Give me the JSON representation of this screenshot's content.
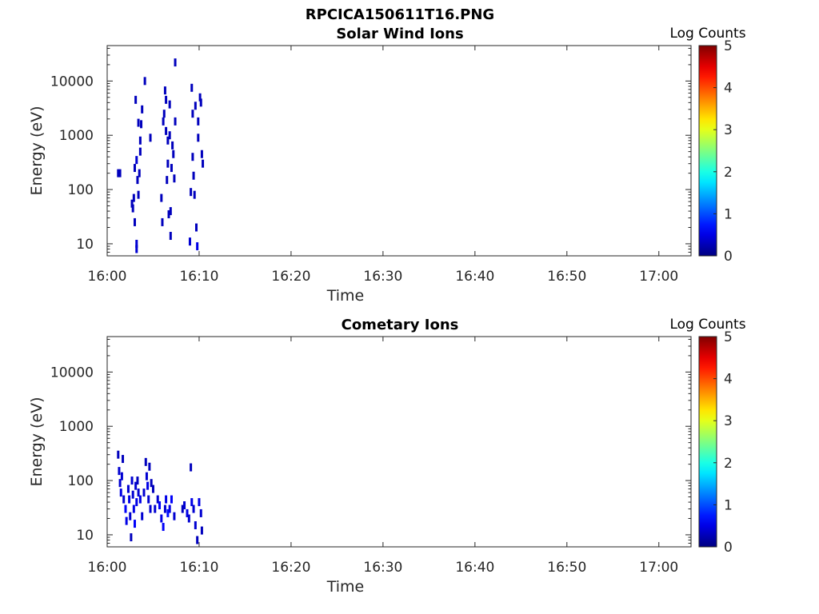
{
  "figure": {
    "title": "RPCICA150611T16.PNG"
  },
  "colors": {
    "colormap": "jet",
    "axis": "#262626",
    "background": "#ffffff"
  },
  "chart_data": [
    {
      "type": "heatmap",
      "title": "Solar Wind Ions",
      "xlabel": "Time",
      "ylabel": "Energy (eV)",
      "x_ticks": [
        "16:00",
        "16:10",
        "16:20",
        "16:30",
        "16:40",
        "16:50",
        "17:00"
      ],
      "xlim_minutes": [
        0,
        63.5
      ],
      "y_scale": "log",
      "y_ticks": [
        "10",
        "100",
        "1000",
        "10000"
      ],
      "ylim": [
        6,
        45000
      ],
      "colorbar": {
        "label": "Log Counts",
        "ticks": [
          "0",
          "1",
          "2",
          "3",
          "4",
          "5"
        ],
        "range": [
          0,
          5
        ]
      },
      "points": [
        [
          1.2,
          200,
          0.3
        ],
        [
          1.4,
          200,
          0.3
        ],
        [
          2.7,
          55,
          0.3
        ],
        [
          2.9,
          70,
          0.3
        ],
        [
          2.8,
          45,
          0.3
        ],
        [
          3.0,
          250,
          0.3
        ],
        [
          3.2,
          350,
          0.4
        ],
        [
          3.0,
          25,
          0.3
        ],
        [
          3.2,
          8,
          0.4
        ],
        [
          3.2,
          10,
          0.4
        ],
        [
          3.3,
          150,
          0.3
        ],
        [
          3.5,
          200,
          0.3
        ],
        [
          3.4,
          80,
          0.3
        ],
        [
          3.6,
          500,
          0.3
        ],
        [
          3.6,
          800,
          0.3
        ],
        [
          3.4,
          1700,
          0.3
        ],
        [
          3.7,
          1600,
          0.3
        ],
        [
          3.8,
          3000,
          0.3
        ],
        [
          3.1,
          4500,
          0.3
        ],
        [
          4.1,
          10000,
          0.3
        ],
        [
          4.7,
          900,
          0.3
        ],
        [
          5.9,
          70,
          0.3
        ],
        [
          6.0,
          25,
          0.3
        ],
        [
          6.1,
          1800,
          0.3
        ],
        [
          6.2,
          2500,
          0.3
        ],
        [
          6.3,
          6700,
          0.3
        ],
        [
          6.4,
          1200,
          0.3
        ],
        [
          6.4,
          4500,
          0.3
        ],
        [
          6.5,
          150,
          0.3
        ],
        [
          6.6,
          300,
          0.3
        ],
        [
          6.6,
          800,
          0.3
        ],
        [
          6.7,
          35,
          0.3
        ],
        [
          6.8,
          3700,
          0.3
        ],
        [
          6.8,
          1000,
          0.3
        ],
        [
          6.9,
          40,
          0.3
        ],
        [
          6.9,
          14,
          0.3
        ],
        [
          7.0,
          250,
          0.3
        ],
        [
          7.1,
          650,
          0.3
        ],
        [
          7.2,
          450,
          0.3
        ],
        [
          7.4,
          22000,
          0.3
        ],
        [
          7.4,
          1800,
          0.3
        ],
        [
          7.3,
          160,
          0.3
        ],
        [
          9.0,
          11,
          0.4
        ],
        [
          9.1,
          90,
          0.3
        ],
        [
          9.2,
          7500,
          0.3
        ],
        [
          9.3,
          2500,
          0.3
        ],
        [
          9.3,
          400,
          0.3
        ],
        [
          9.4,
          180,
          0.3
        ],
        [
          9.5,
          80,
          0.3
        ],
        [
          9.6,
          3500,
          0.3
        ],
        [
          9.7,
          20,
          0.3
        ],
        [
          9.8,
          9,
          0.5
        ],
        [
          9.9,
          900,
          0.3
        ],
        [
          10.1,
          5000,
          0.3
        ],
        [
          10.2,
          4000,
          0.3
        ],
        [
          10.3,
          450,
          0.3
        ],
        [
          10.4,
          300,
          0.3
        ],
        [
          9.9,
          1800,
          0.3
        ]
      ]
    },
    {
      "type": "heatmap",
      "title": "Cometary Ions",
      "xlabel": "Time",
      "ylabel": "Energy (eV)",
      "x_ticks": [
        "16:00",
        "16:10",
        "16:20",
        "16:30",
        "16:40",
        "16:50",
        "17:00"
      ],
      "xlim_minutes": [
        0,
        63.5
      ],
      "y_scale": "log",
      "y_ticks": [
        "10",
        "100",
        "1000",
        "10000"
      ],
      "ylim": [
        6,
        45000
      ],
      "colorbar": {
        "label": "Log Counts",
        "ticks": [
          "0",
          "1",
          "2",
          "3",
          "4",
          "5"
        ],
        "range": [
          0,
          5
        ]
      },
      "points": [
        [
          1.2,
          300,
          0.3
        ],
        [
          1.3,
          150,
          0.4
        ],
        [
          1.4,
          90,
          0.4
        ],
        [
          1.5,
          60,
          0.5
        ],
        [
          1.6,
          120,
          0.4
        ],
        [
          1.7,
          250,
          0.3
        ],
        [
          1.8,
          45,
          0.4
        ],
        [
          2.0,
          30,
          0.6
        ],
        [
          2.1,
          18,
          0.5
        ],
        [
          2.3,
          70,
          0.4
        ],
        [
          2.4,
          45,
          0.5
        ],
        [
          2.5,
          22,
          0.4
        ],
        [
          2.6,
          9,
          0.3
        ],
        [
          2.7,
          100,
          0.4
        ],
        [
          2.8,
          55,
          0.4
        ],
        [
          2.9,
          30,
          0.5
        ],
        [
          3.0,
          16,
          0.6
        ],
        [
          3.1,
          80,
          0.4
        ],
        [
          3.2,
          40,
          0.5
        ],
        [
          3.3,
          100,
          0.3
        ],
        [
          3.4,
          60,
          0.4
        ],
        [
          3.6,
          45,
          0.5
        ],
        [
          3.8,
          22,
          0.4
        ],
        [
          4.0,
          60,
          0.4
        ],
        [
          4.2,
          220,
          0.3
        ],
        [
          4.3,
          120,
          0.4
        ],
        [
          4.4,
          80,
          0.5
        ],
        [
          4.5,
          45,
          0.4
        ],
        [
          4.6,
          180,
          0.3
        ],
        [
          4.7,
          30,
          0.4
        ],
        [
          4.8,
          90,
          0.3
        ],
        [
          5.0,
          70,
          0.3
        ],
        [
          5.2,
          30,
          0.4
        ],
        [
          5.5,
          45,
          0.4
        ],
        [
          5.7,
          35,
          0.6
        ],
        [
          5.9,
          20,
          0.5
        ],
        [
          6.1,
          14,
          0.6
        ],
        [
          6.3,
          30,
          0.4
        ],
        [
          6.4,
          45,
          0.5
        ],
        [
          6.6,
          25,
          0.7
        ],
        [
          6.8,
          30,
          0.5
        ],
        [
          7.0,
          45,
          0.6
        ],
        [
          7.3,
          22,
          0.4
        ],
        [
          8.2,
          30,
          0.3
        ],
        [
          8.4,
          35,
          0.4
        ],
        [
          8.7,
          25,
          0.5
        ],
        [
          8.9,
          20,
          0.4
        ],
        [
          9.1,
          175,
          0.3
        ],
        [
          9.2,
          40,
          0.5
        ],
        [
          9.4,
          30,
          0.4
        ],
        [
          9.6,
          15,
          0.4
        ],
        [
          9.8,
          8,
          0.3
        ],
        [
          10.0,
          40,
          0.5
        ],
        [
          10.2,
          25,
          0.4
        ],
        [
          10.3,
          12,
          0.3
        ]
      ]
    }
  ]
}
